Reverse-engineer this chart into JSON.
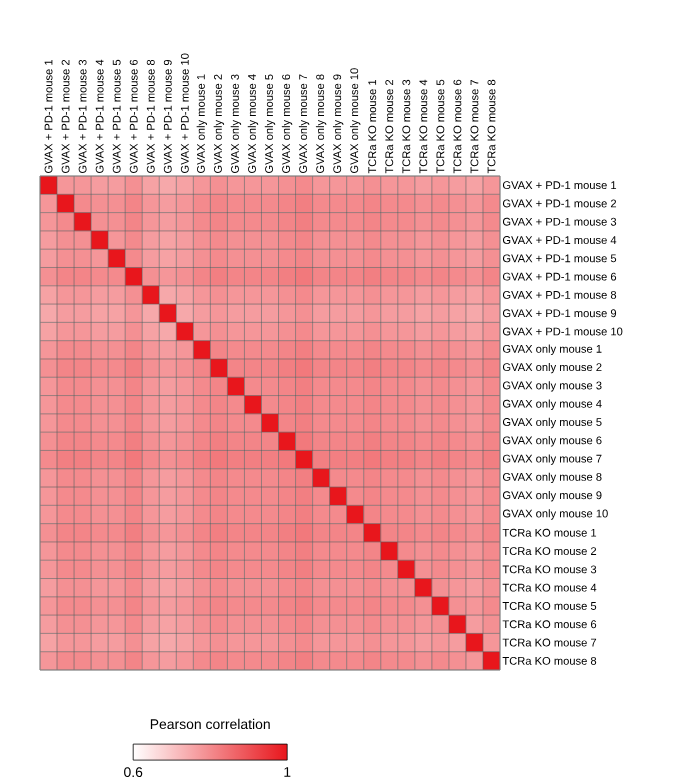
{
  "chart_data": {
    "type": "heatmap",
    "categories": [
      "GVAX + PD-1 mouse 1",
      "GVAX + PD-1 mouse 2",
      "GVAX + PD-1 mouse 3",
      "GVAX + PD-1 mouse 4",
      "GVAX + PD-1 mouse 5",
      "GVAX + PD-1 mouse 6",
      "GVAX + PD-1 mouse 8",
      "GVAX + PD-1 mouse 9",
      "GVAX + PD-1 mouse 10",
      "GVAX only mouse 1",
      "GVAX only mouse 2",
      "GVAX only mouse 3",
      "GVAX only mouse 4",
      "GVAX only mouse 5",
      "GVAX only mouse 6",
      "GVAX only mouse 7",
      "GVAX only mouse 8",
      "GVAX only mouse 9",
      "GVAX only mouse 10",
      "TCRa KO mouse 1",
      "TCRa KO mouse 2",
      "TCRa KO mouse 3",
      "TCRa KO mouse 4",
      "TCRa KO mouse 5",
      "TCRa KO mouse 6",
      "TCRa KO mouse 7",
      "TCRa KO mouse 8"
    ],
    "y_categories": [
      "GVAX + PD-1 mouse 1",
      "GVAX + PD-1 mouse 2",
      "GVAX + PD-1 mouse 3",
      "GVAX + PD-1 mouse 4",
      "GVAX + PD-1 mouse 5",
      "GVAX + PD-1 mouse 6",
      "GVAX + PD-1 mouse 8",
      "GVAX + PD-1 mouse 9",
      "GVAX + PD-1 mouse 10",
      "GVAX only mouse 1",
      "GVAX only mouse 2",
      "GVAX only mouse 3",
      "GVAX only mouse 4",
      "GVAX only mouse 5",
      "GVAX only mouse 6",
      "GVAX only mouse 7",
      "GVAX only mouse 8",
      "GVAX only mouse 9",
      "GVAX only mouse 10",
      "TCRa KO mouse 1",
      "TCRa KO mouse 2",
      "TCRa KO mouse 3",
      "TCRa KO mouse 4",
      "TCRa KO mouse 5",
      "TCRa KO mouse 6",
      "TCRa KO mouse 7",
      "TCRa KO mouse 8"
    ],
    "cells": [
      [
        1,
        0.78,
        0.78,
        0.77,
        0.77,
        0.79,
        0.76,
        0.75,
        0.76,
        0.78,
        0.79,
        0.78,
        0.78,
        0.78,
        0.79,
        0.8,
        0.78,
        0.78,
        0.78,
        0.79,
        0.78,
        0.78,
        0.77,
        0.78,
        0.77,
        0.76,
        0.78
      ],
      [
        0.78,
        1,
        0.8,
        0.79,
        0.79,
        0.81,
        0.78,
        0.77,
        0.78,
        0.8,
        0.81,
        0.8,
        0.8,
        0.8,
        0.81,
        0.82,
        0.8,
        0.8,
        0.8,
        0.81,
        0.8,
        0.8,
        0.79,
        0.8,
        0.79,
        0.78,
        0.8
      ],
      [
        0.78,
        0.8,
        1,
        0.79,
        0.79,
        0.81,
        0.78,
        0.77,
        0.78,
        0.8,
        0.81,
        0.8,
        0.8,
        0.8,
        0.81,
        0.82,
        0.8,
        0.8,
        0.8,
        0.81,
        0.8,
        0.8,
        0.79,
        0.8,
        0.79,
        0.78,
        0.8
      ],
      [
        0.77,
        0.79,
        0.79,
        1,
        0.78,
        0.8,
        0.77,
        0.76,
        0.77,
        0.79,
        0.8,
        0.79,
        0.79,
        0.79,
        0.8,
        0.81,
        0.79,
        0.79,
        0.79,
        0.8,
        0.79,
        0.79,
        0.78,
        0.79,
        0.78,
        0.77,
        0.79
      ],
      [
        0.77,
        0.79,
        0.79,
        0.78,
        1,
        0.8,
        0.77,
        0.76,
        0.77,
        0.79,
        0.8,
        0.79,
        0.79,
        0.79,
        0.8,
        0.81,
        0.79,
        0.79,
        0.79,
        0.8,
        0.79,
        0.79,
        0.78,
        0.79,
        0.78,
        0.77,
        0.79
      ],
      [
        0.79,
        0.81,
        0.81,
        0.8,
        0.8,
        1,
        0.79,
        0.78,
        0.79,
        0.81,
        0.82,
        0.81,
        0.81,
        0.81,
        0.82,
        0.83,
        0.81,
        0.81,
        0.81,
        0.82,
        0.81,
        0.81,
        0.8,
        0.81,
        0.8,
        0.79,
        0.81
      ],
      [
        0.76,
        0.78,
        0.78,
        0.77,
        0.77,
        0.79,
        1,
        0.75,
        0.76,
        0.78,
        0.79,
        0.78,
        0.78,
        0.78,
        0.79,
        0.8,
        0.78,
        0.78,
        0.78,
        0.79,
        0.78,
        0.78,
        0.77,
        0.78,
        0.77,
        0.76,
        0.78
      ],
      [
        0.75,
        0.77,
        0.77,
        0.76,
        0.76,
        0.78,
        0.75,
        1,
        0.75,
        0.77,
        0.78,
        0.77,
        0.77,
        0.77,
        0.78,
        0.79,
        0.77,
        0.77,
        0.77,
        0.78,
        0.77,
        0.77,
        0.76,
        0.77,
        0.76,
        0.75,
        0.77
      ],
      [
        0.76,
        0.78,
        0.78,
        0.77,
        0.77,
        0.79,
        0.76,
        0.75,
        1,
        0.78,
        0.79,
        0.78,
        0.78,
        0.78,
        0.79,
        0.8,
        0.78,
        0.78,
        0.78,
        0.79,
        0.78,
        0.78,
        0.77,
        0.78,
        0.77,
        0.76,
        0.78
      ],
      [
        0.78,
        0.8,
        0.8,
        0.79,
        0.79,
        0.81,
        0.78,
        0.77,
        0.78,
        1,
        0.81,
        0.8,
        0.8,
        0.8,
        0.81,
        0.82,
        0.8,
        0.8,
        0.8,
        0.81,
        0.8,
        0.8,
        0.79,
        0.8,
        0.79,
        0.78,
        0.8
      ],
      [
        0.79,
        0.81,
        0.81,
        0.8,
        0.8,
        0.82,
        0.79,
        0.78,
        0.79,
        0.81,
        1,
        0.81,
        0.81,
        0.81,
        0.82,
        0.83,
        0.81,
        0.81,
        0.81,
        0.82,
        0.81,
        0.81,
        0.8,
        0.81,
        0.8,
        0.79,
        0.81
      ],
      [
        0.78,
        0.8,
        0.8,
        0.79,
        0.79,
        0.81,
        0.78,
        0.77,
        0.78,
        0.8,
        0.81,
        1,
        0.8,
        0.8,
        0.81,
        0.82,
        0.8,
        0.8,
        0.8,
        0.81,
        0.8,
        0.8,
        0.79,
        0.8,
        0.79,
        0.78,
        0.8
      ],
      [
        0.78,
        0.8,
        0.8,
        0.79,
        0.79,
        0.81,
        0.78,
        0.77,
        0.78,
        0.8,
        0.81,
        0.8,
        1,
        0.8,
        0.81,
        0.82,
        0.8,
        0.8,
        0.8,
        0.81,
        0.8,
        0.8,
        0.79,
        0.8,
        0.79,
        0.78,
        0.8
      ],
      [
        0.78,
        0.8,
        0.8,
        0.79,
        0.79,
        0.81,
        0.78,
        0.77,
        0.78,
        0.8,
        0.81,
        0.8,
        0.8,
        1,
        0.81,
        0.82,
        0.8,
        0.8,
        0.8,
        0.81,
        0.8,
        0.8,
        0.79,
        0.8,
        0.79,
        0.78,
        0.8
      ],
      [
        0.79,
        0.81,
        0.81,
        0.8,
        0.8,
        0.82,
        0.79,
        0.78,
        0.79,
        0.81,
        0.82,
        0.81,
        0.81,
        0.81,
        1,
        0.83,
        0.81,
        0.81,
        0.81,
        0.82,
        0.81,
        0.81,
        0.8,
        0.81,
        0.8,
        0.79,
        0.81
      ],
      [
        0.8,
        0.82,
        0.82,
        0.81,
        0.81,
        0.83,
        0.8,
        0.79,
        0.8,
        0.82,
        0.83,
        0.82,
        0.82,
        0.82,
        0.83,
        1,
        0.82,
        0.82,
        0.82,
        0.83,
        0.82,
        0.82,
        0.81,
        0.82,
        0.81,
        0.8,
        0.82
      ],
      [
        0.78,
        0.8,
        0.8,
        0.79,
        0.79,
        0.81,
        0.78,
        0.77,
        0.78,
        0.8,
        0.81,
        0.8,
        0.8,
        0.8,
        0.81,
        0.82,
        1,
        0.8,
        0.8,
        0.81,
        0.8,
        0.8,
        0.79,
        0.8,
        0.79,
        0.78,
        0.8
      ],
      [
        0.78,
        0.8,
        0.8,
        0.79,
        0.79,
        0.81,
        0.78,
        0.77,
        0.78,
        0.8,
        0.81,
        0.8,
        0.8,
        0.8,
        0.81,
        0.82,
        0.8,
        1,
        0.8,
        0.81,
        0.8,
        0.8,
        0.79,
        0.8,
        0.79,
        0.78,
        0.8
      ],
      [
        0.78,
        0.8,
        0.8,
        0.79,
        0.79,
        0.81,
        0.78,
        0.77,
        0.78,
        0.8,
        0.81,
        0.8,
        0.8,
        0.8,
        0.81,
        0.82,
        0.8,
        0.8,
        1,
        0.81,
        0.8,
        0.8,
        0.79,
        0.8,
        0.79,
        0.78,
        0.8
      ],
      [
        0.79,
        0.81,
        0.81,
        0.8,
        0.8,
        0.82,
        0.79,
        0.78,
        0.79,
        0.81,
        0.82,
        0.81,
        0.81,
        0.81,
        0.82,
        0.83,
        0.81,
        0.81,
        0.81,
        1,
        0.81,
        0.81,
        0.8,
        0.81,
        0.8,
        0.79,
        0.81
      ],
      [
        0.78,
        0.8,
        0.8,
        0.79,
        0.79,
        0.81,
        0.78,
        0.77,
        0.78,
        0.8,
        0.81,
        0.8,
        0.8,
        0.8,
        0.81,
        0.82,
        0.8,
        0.8,
        0.8,
        0.81,
        1,
        0.8,
        0.79,
        0.8,
        0.79,
        0.78,
        0.8
      ],
      [
        0.78,
        0.8,
        0.8,
        0.79,
        0.79,
        0.81,
        0.78,
        0.77,
        0.78,
        0.8,
        0.81,
        0.8,
        0.8,
        0.8,
        0.81,
        0.82,
        0.8,
        0.8,
        0.8,
        0.81,
        0.8,
        1,
        0.79,
        0.8,
        0.79,
        0.78,
        0.8
      ],
      [
        0.77,
        0.79,
        0.79,
        0.78,
        0.78,
        0.8,
        0.77,
        0.76,
        0.77,
        0.79,
        0.8,
        0.79,
        0.79,
        0.79,
        0.8,
        0.81,
        0.79,
        0.79,
        0.79,
        0.8,
        0.79,
        0.79,
        1,
        0.79,
        0.78,
        0.77,
        0.79
      ],
      [
        0.78,
        0.8,
        0.8,
        0.79,
        0.79,
        0.81,
        0.78,
        0.77,
        0.78,
        0.8,
        0.81,
        0.8,
        0.8,
        0.8,
        0.81,
        0.82,
        0.8,
        0.8,
        0.8,
        0.81,
        0.8,
        0.8,
        0.79,
        1,
        0.79,
        0.78,
        0.8
      ],
      [
        0.77,
        0.79,
        0.79,
        0.78,
        0.78,
        0.8,
        0.77,
        0.76,
        0.77,
        0.79,
        0.8,
        0.79,
        0.79,
        0.79,
        0.8,
        0.81,
        0.79,
        0.79,
        0.79,
        0.8,
        0.79,
        0.79,
        0.78,
        0.79,
        1,
        0.77,
        0.79
      ],
      [
        0.76,
        0.78,
        0.78,
        0.77,
        0.77,
        0.79,
        0.76,
        0.75,
        0.76,
        0.78,
        0.79,
        0.78,
        0.78,
        0.78,
        0.79,
        0.8,
        0.78,
        0.78,
        0.78,
        0.79,
        0.78,
        0.78,
        0.77,
        0.78,
        0.77,
        1,
        0.78
      ],
      [
        0.78,
        0.8,
        0.8,
        0.79,
        0.79,
        0.81,
        0.78,
        0.77,
        0.78,
        0.8,
        0.81,
        0.8,
        0.8,
        0.8,
        0.81,
        0.82,
        0.8,
        0.8,
        0.8,
        0.81,
        0.8,
        0.8,
        0.79,
        0.8,
        0.79,
        0.78,
        1
      ]
    ],
    "grid": true,
    "clabel": "Pearson correlation",
    "clim": [
      0.6,
      1
    ],
    "cticks": [
      0.6,
      1
    ]
  }
}
